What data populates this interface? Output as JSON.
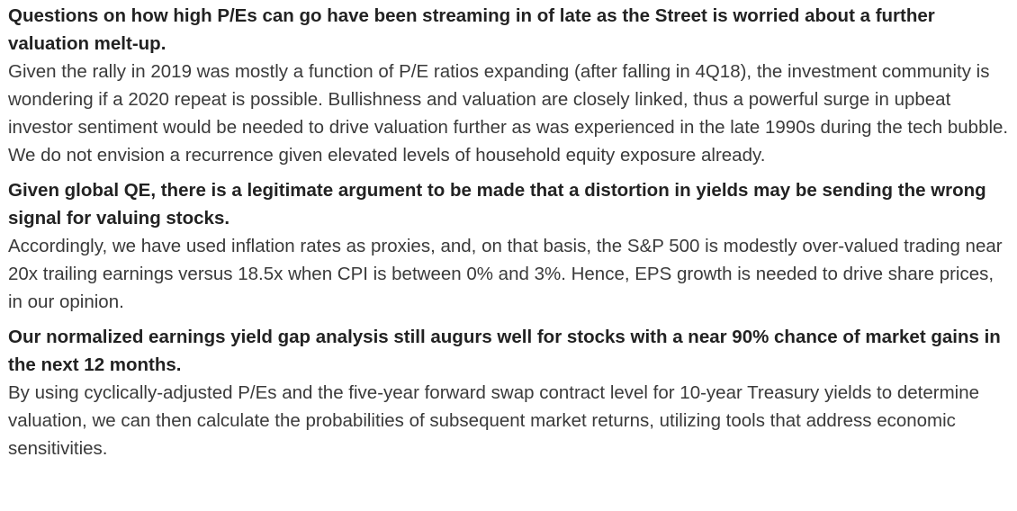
{
  "sections": [
    {
      "heading": "Questions on how high P/Es can go have been streaming in of late as the Street is worried about a further valuation melt-up.",
      "body": "Given the rally in 2019 was mostly a function of P/E ratios expanding (after falling in 4Q18), the investment community is wondering if a 2020 repeat is possible. Bullishness and valuation are closely linked, thus a powerful surge in upbeat investor sentiment would be needed to drive valuation further as was experienced in the late 1990s during the tech bubble. We do not envision a recurrence given elevated levels of household equity exposure already."
    },
    {
      "heading": "Given global QE, there is a legitimate argument to be made that a distortion in yields may be sending the wrong signal for valuing stocks.",
      "body": "Accordingly, we have used inflation rates as proxies, and, on that basis, the S&P 500 is modestly over-valued trading near 20x trailing earnings versus 18.5x when CPI is between 0% and 3%. Hence, EPS growth is needed to drive share prices, in our opinion."
    },
    {
      "heading": "Our normalized earnings yield gap analysis still augurs well for stocks with a near 90% chance of market gains in the next 12 months.",
      "body": "By using cyclically-adjusted P/Es and the five-year forward swap contract level for 10-year Treasury yields to determine valuation, we can then calculate the probabilities of subsequent market returns, utilizing tools that address economic sensitivities."
    }
  ]
}
